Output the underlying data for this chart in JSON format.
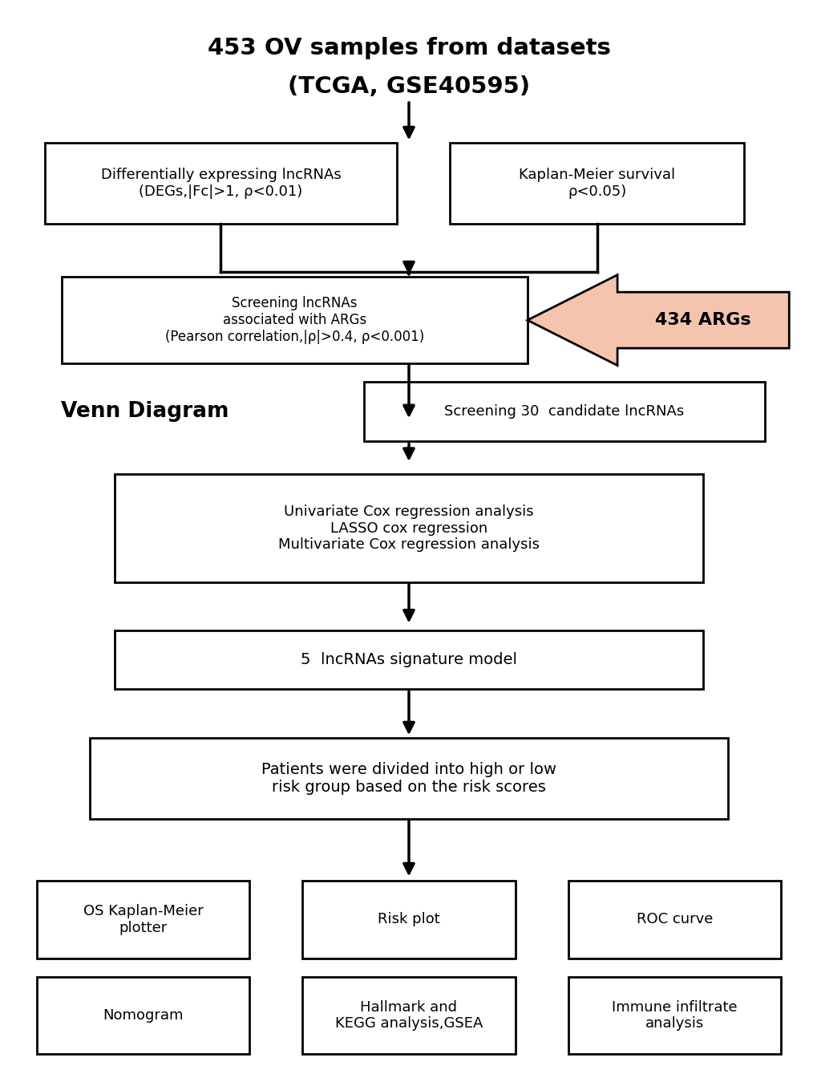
{
  "title_line1": "453 OV samples from datasets",
  "title_line2": "(TCGA, GSE40595)",
  "bg_color": "#ffffff",
  "box_edge_color": "#000000",
  "box_face_color": "#ffffff",
  "arrow_color": "#000000",
  "args_text": "434 ARGs",
  "args_fill": "#f5c4ae",
  "figsize": [
    10.2,
    13.44
  ],
  "dpi": 100
}
